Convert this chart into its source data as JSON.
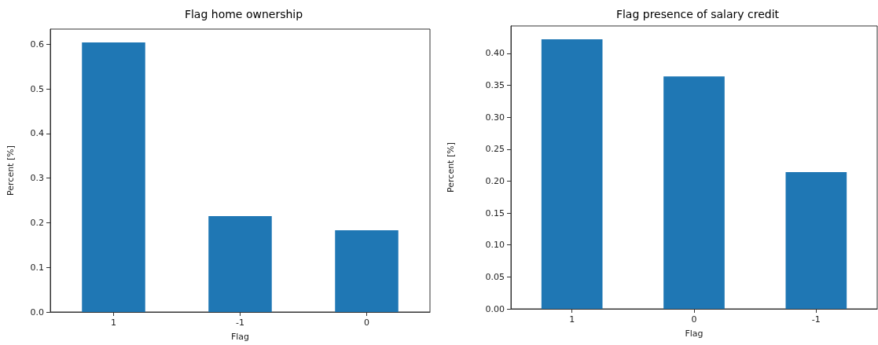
{
  "chart_data": [
    {
      "type": "bar",
      "title": "Flag home ownership",
      "xlabel": "Flag",
      "ylabel": "Percent [%]",
      "categories": [
        "1",
        "-1",
        "0"
      ],
      "values": [
        0.604,
        0.215,
        0.183
      ],
      "color": "#1f77b4",
      "ylim": [
        0,
        0.634
      ],
      "yticks": [
        {
          "value": 0,
          "label": "0.0"
        },
        0.1,
        0.2,
        0.3,
        0.4,
        0.5,
        0.6
      ],
      "grid": false
    },
    {
      "type": "bar",
      "title": "Flag presence of salary credit",
      "xlabel": "Flag",
      "ylabel": "Percent [%]",
      "categories": [
        "1",
        "0",
        "-1"
      ],
      "values": [
        0.422,
        0.364,
        0.214
      ],
      "color": "#1f77b4",
      "ylim": [
        0,
        0.443
      ],
      "yticks": [
        {
          "value": 0,
          "label": "0.00"
        },
        {
          "value": 0.05,
          "label": "0.05"
        },
        {
          "value": 0.1,
          "label": "0.10"
        },
        {
          "value": 0.15,
          "label": "0.15"
        },
        {
          "value": 0.2,
          "label": "0.20"
        },
        {
          "value": 0.25,
          "label": "0.25"
        },
        {
          "value": 0.3,
          "label": "0.30"
        },
        {
          "value": 0.35,
          "label": "0.35"
        },
        {
          "value": 0.4,
          "label": "0.40"
        }
      ],
      "grid": false
    }
  ]
}
